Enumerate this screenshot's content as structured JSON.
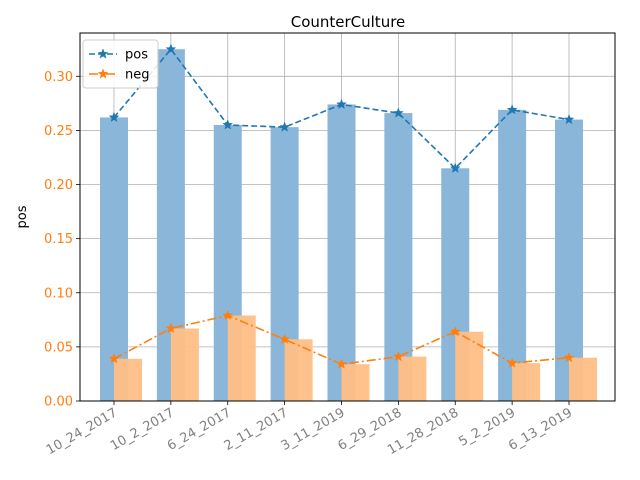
{
  "chart_data": {
    "type": "bar",
    "title": "CounterCulture",
    "xlabel": "",
    "ylabel": "pos",
    "ylim": [
      0,
      0.34
    ],
    "yticks": [
      0.0,
      0.05,
      0.1,
      0.15,
      0.2,
      0.25,
      0.3
    ],
    "ytick_labels": [
      "0.00",
      "0.05",
      "0.10",
      "0.15",
      "0.20",
      "0.25",
      "0.30"
    ],
    "grid": true,
    "legend_position": "top-left",
    "categories": [
      "10_24_2017",
      "10_2_2017",
      "6_24_2017",
      "2_11_2017",
      "3_11_2019",
      "6_29_2018",
      "11_28_2018",
      "5_2_2019",
      "6_13_2019"
    ],
    "series": [
      {
        "name": "pos",
        "values": [
          0.262,
          0.325,
          0.255,
          0.253,
          0.274,
          0.266,
          0.215,
          0.269,
          0.26
        ],
        "color": "#1f77b4",
        "bar_color": "#8ab6d9",
        "line_style": "dashed"
      },
      {
        "name": "neg",
        "values": [
          0.039,
          0.067,
          0.079,
          0.057,
          0.034,
          0.041,
          0.064,
          0.035,
          0.04
        ],
        "color": "#ff7f0e",
        "bar_color": "#ffbf86",
        "line_style": "dashdot"
      }
    ],
    "ytick_color": "#ff7f0e",
    "xtick_color": "#808080"
  }
}
